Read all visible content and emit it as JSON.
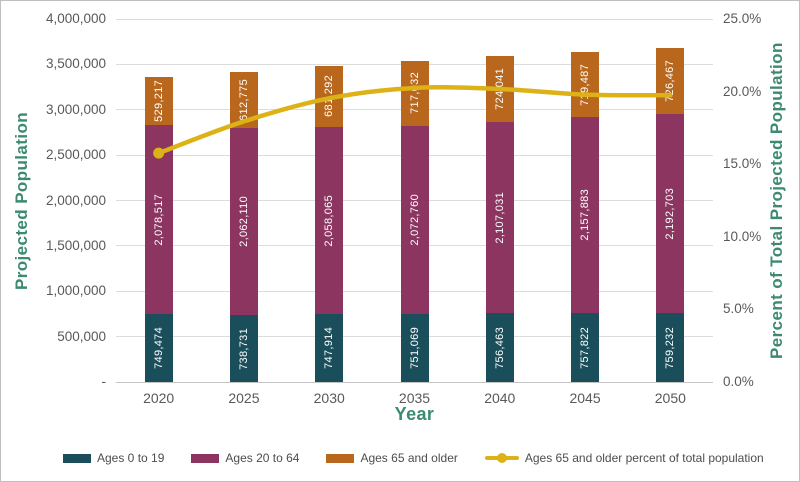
{
  "frame": {
    "background": "#ffffff",
    "border_color": "#bfbfbf"
  },
  "chart_data": {
    "type": "bar",
    "subtype": "stacked-columns-with-percent-line",
    "title": "",
    "categories": [
      "2020",
      "2025",
      "2030",
      "2035",
      "2040",
      "2045",
      "2050"
    ],
    "series": [
      {
        "name": "Ages 0 to 19",
        "color": "#1a4e5a",
        "values": [
          749474,
          738731,
          747914,
          751069,
          756463,
          757822,
          759232
        ]
      },
      {
        "name": "Ages 20 to 64",
        "color": "#8b3560",
        "values": [
          2078517,
          2062110,
          2058065,
          2072760,
          2107031,
          2157883,
          2192703
        ]
      },
      {
        "name": "Ages 65 and older",
        "color": "#b8671c",
        "values": [
          529217,
          612775,
          681292,
          717032,
          724041,
          719487,
          726467
        ]
      }
    ],
    "line_series": {
      "name": "Ages 65 and older percent of total population",
      "color": "#ddb216",
      "values_percent": [
        15.76,
        17.95,
        19.54,
        20.25,
        20.18,
        19.79,
        19.75
      ]
    },
    "left_axis": {
      "title": "Projected Population",
      "min": 0,
      "max": 4000000,
      "tick_step": 500000,
      "tick_labels_bottom_up": [
        "-",
        "500,000",
        "1,000,000",
        "1,500,000",
        "2,000,000",
        "2,500,000",
        "3,000,000",
        "3,500,000",
        "4,000,000"
      ]
    },
    "right_axis": {
      "title": "Percent of Total Projected Population",
      "min": 0,
      "max": 25,
      "tick_step": 5,
      "tick_labels_bottom_up": [
        "0.0%",
        "5.0%",
        "10.0%",
        "15.0%",
        "20.0%",
        "25.0%"
      ]
    },
    "x_axis": {
      "title": "Year"
    },
    "legend": [
      {
        "label": "Ages 0 to 19",
        "marker": "swatch",
        "color": "#1a4e5a"
      },
      {
        "label": "Ages 20 to 64",
        "marker": "swatch",
        "color": "#8b3560"
      },
      {
        "label": "Ages 65 and older",
        "marker": "swatch",
        "color": "#b8671c"
      },
      {
        "label": "Ages 65 and older percent of total population",
        "marker": "line-dot",
        "color": "#ddb216"
      }
    ],
    "grid": true,
    "legend_position": "bottom",
    "colors": {
      "axis_title": "#3c8a72",
      "tick_label": "#595959",
      "legend_label": "#4d4d4d",
      "gridline": "#dcdcdc",
      "axis_line": "#c4c4c4",
      "bar_label": "#ffffff"
    }
  }
}
